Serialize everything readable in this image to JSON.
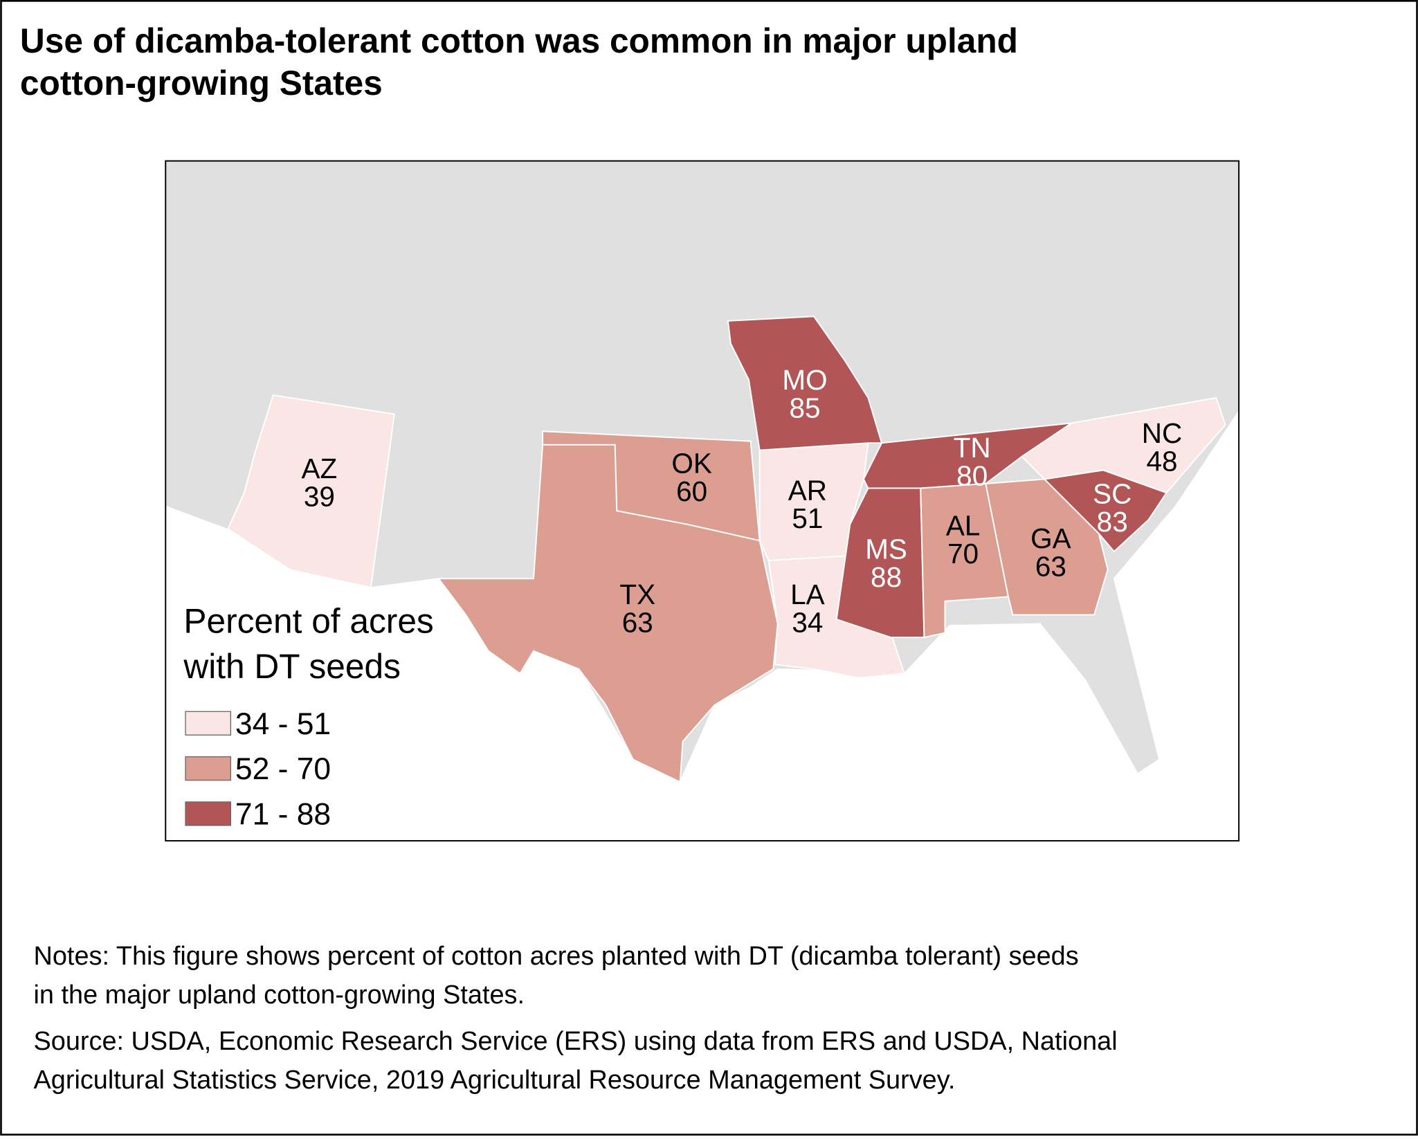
{
  "title": [
    "Use of dicamba-tolerant cotton was common in major upland",
    "cotton-growing States"
  ],
  "map": {
    "legend_title": [
      "Percent of acres",
      "with DT seeds"
    ],
    "legend": [
      {
        "label": "34 - 51",
        "color": "#fbe6e6"
      },
      {
        "label": "52 - 70",
        "color": "#dc9e91"
      },
      {
        "label": "71 - 88",
        "color": "#b25556"
      }
    ],
    "states": [
      {
        "abbr": "AZ",
        "value": 39,
        "color": "#fbe6e6"
      },
      {
        "abbr": "OK",
        "value": 60,
        "color": "#dc9e91"
      },
      {
        "abbr": "TX",
        "value": 63,
        "color": "#dc9e91"
      },
      {
        "abbr": "AR",
        "value": 51,
        "color": "#fbe6e6"
      },
      {
        "abbr": "LA",
        "value": 34,
        "color": "#fbe6e6"
      },
      {
        "abbr": "MO",
        "value": 85,
        "color": "#b25556"
      },
      {
        "abbr": "TN",
        "value": 80,
        "color": "#b25556"
      },
      {
        "abbr": "MS",
        "value": 88,
        "color": "#b25556"
      },
      {
        "abbr": "AL",
        "value": 70,
        "color": "#dc9e91"
      },
      {
        "abbr": "GA",
        "value": 63,
        "color": "#dc9e91"
      },
      {
        "abbr": "SC",
        "value": 83,
        "color": "#b25556"
      },
      {
        "abbr": "NC",
        "value": 48,
        "color": "#fbe6e6"
      }
    ]
  },
  "notes": [
    "Notes: This figure shows percent of cotton acres planted with DT (dicamba tolerant) seeds",
    "in the major upland cotton-growing States."
  ],
  "source": [
    "Source: USDA, Economic Research Service (ERS) using data from ERS and USDA, National",
    "Agricultural Statistics Service, 2019 Agricultural Resource Management Survey."
  ]
}
